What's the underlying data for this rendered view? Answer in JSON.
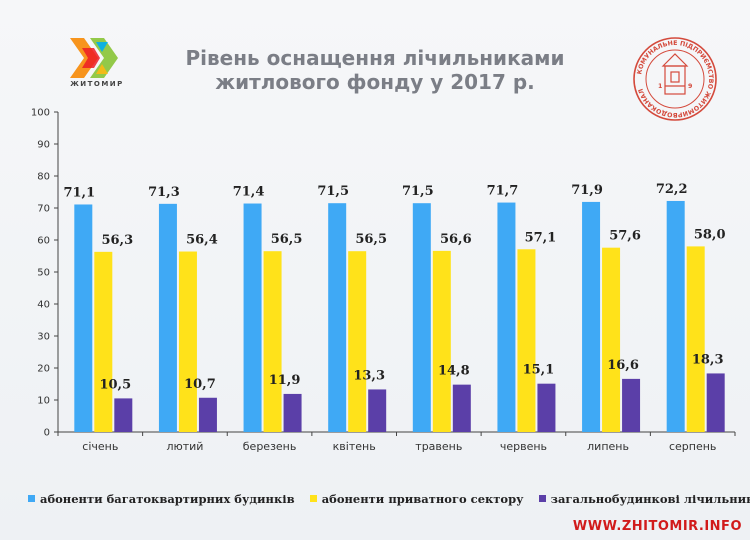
{
  "header": {
    "title_line1": "Рівень оснащення лічильниками",
    "title_line2": "житлового фонду у 2017 р.",
    "logo_wordmark": "ЖИТОМИР",
    "seal_text": "КОМУНАЛЬНЕ ПІДПРИЄМСТВО ЖИТОМИРВОДОКАНАЛ",
    "seal_year_left": "1",
    "seal_year_right": "9"
  },
  "watermark": "WWW.ZHITOMIR.INFO",
  "colors": {
    "series1": "#3fa9f5",
    "series2": "#ffe21a",
    "series3": "#5b3fa8",
    "title": "#7b7e86",
    "watermark": "#d11b1b"
  },
  "chart_data": {
    "type": "bar",
    "title": "Рівень оснащення лічильниками житлового фонду у 2017 р.",
    "xlabel": "",
    "ylabel": "",
    "ylim": [
      0,
      100
    ],
    "yticks": [
      0,
      10,
      20,
      30,
      40,
      50,
      60,
      70,
      80,
      90,
      100
    ],
    "grid": false,
    "legend_position": "bottom",
    "categories": [
      "січень",
      "лютий",
      "березень",
      "квітень",
      "травень",
      "червень",
      "липень",
      "серпень"
    ],
    "series": [
      {
        "name": "абоненти багатоквартирних будинків",
        "values": [
          71.1,
          71.3,
          71.4,
          71.5,
          71.5,
          71.7,
          71.9,
          72.2
        ],
        "labels": [
          "71,1",
          "71,3",
          "71,4",
          "71,5",
          "71,5",
          "71,7",
          "71,9",
          "72,2"
        ]
      },
      {
        "name": "абоненти приватного сектору",
        "values": [
          56.3,
          56.4,
          56.5,
          56.5,
          56.6,
          57.1,
          57.6,
          58.0
        ],
        "labels": [
          "56,3",
          "56,4",
          "56,5",
          "56,5",
          "56,6",
          "57,1",
          "57,6",
          "58,0"
        ]
      },
      {
        "name": "загальнобудинкові лічильники",
        "values": [
          10.5,
          10.7,
          11.9,
          13.3,
          14.8,
          15.1,
          16.6,
          18.3
        ],
        "labels": [
          "10,5",
          "10,7",
          "11,9",
          "13,3",
          "14,8",
          "15,1",
          "16,6",
          "18,3"
        ]
      }
    ]
  }
}
